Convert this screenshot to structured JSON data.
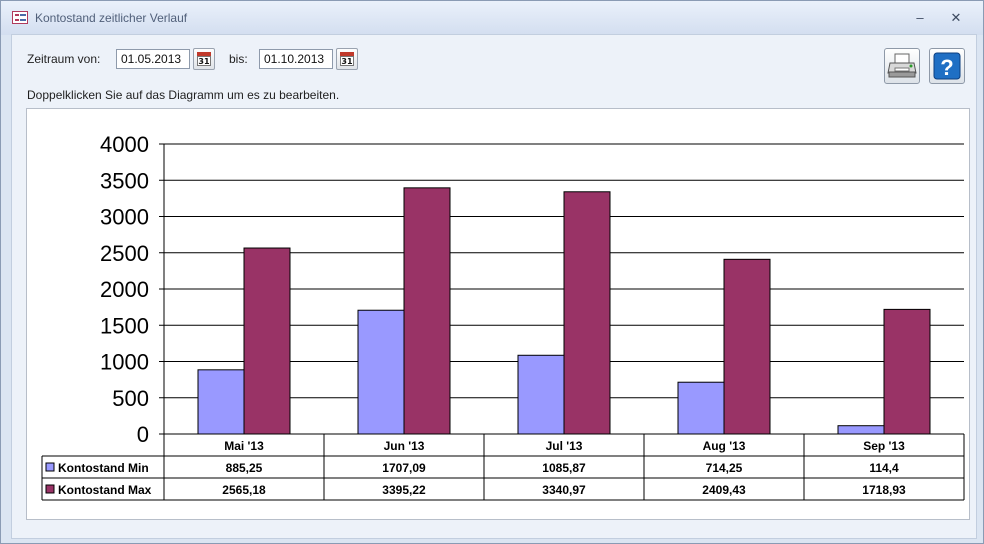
{
  "window": {
    "title": "Kontostand zeitlicher Verlauf",
    "minimize_glyph": "–",
    "close_glyph": "✕"
  },
  "filter": {
    "from_label": "Zeitraum von:",
    "from_value": "01.05.2013",
    "to_label": "bis:",
    "to_value": "01.10.2013",
    "calendar_day": "31"
  },
  "hint": "Doppelklicken Sie auf das Diagramm um es zu bearbeiten.",
  "toolbar": {
    "print_icon": "printer-icon",
    "help_icon": "help-icon",
    "help_glyph": "?"
  },
  "colors": {
    "min": "#9999ff",
    "max": "#993366"
  },
  "chart_data": {
    "type": "bar",
    "categories": [
      "Mai '13",
      "Jun '13",
      "Jul '13",
      "Aug '13",
      "Sep '13"
    ],
    "series": [
      {
        "name": "Kontostand Min",
        "values": [
          885.25,
          1707.09,
          1085.87,
          714.25,
          114.4
        ],
        "labels": [
          "885,25",
          "1707,09",
          "1085,87",
          "714,25",
          "114,4"
        ]
      },
      {
        "name": "Kontostand Max",
        "values": [
          2565.18,
          3395.22,
          3340.97,
          2409.43,
          1718.93
        ],
        "labels": [
          "2565,18",
          "3395,22",
          "3340,97",
          "2409,43",
          "1718,93"
        ]
      }
    ],
    "ylim": [
      0,
      4000
    ],
    "yticks": [
      0,
      500,
      1000,
      1500,
      2000,
      2500,
      3000,
      3500,
      4000
    ],
    "grid": true,
    "legend": "data-table"
  }
}
